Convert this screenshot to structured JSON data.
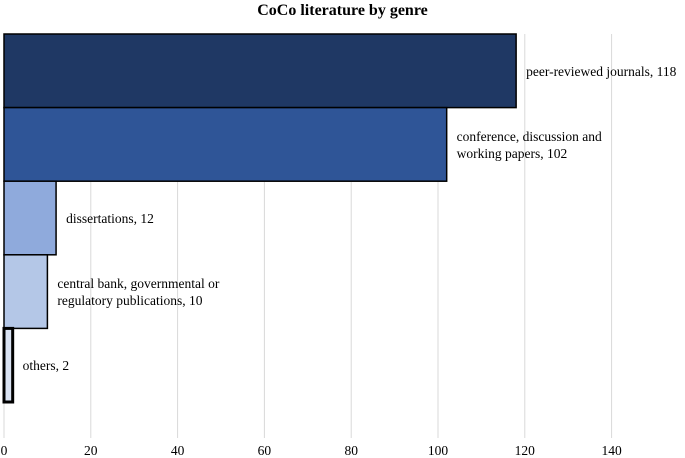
{
  "chart_data": {
    "type": "bar",
    "orientation": "horizontal",
    "title": "CoCo literature by genre",
    "xlabel": "",
    "ylabel": "",
    "xlim": [
      0,
      150
    ],
    "xticks": [
      0,
      20,
      40,
      60,
      80,
      100,
      120,
      140
    ],
    "grid": "vertical",
    "legend": "none",
    "categories": [
      "peer-reviewed journals",
      "conference, discussion and working papers",
      "dissertations",
      "central bank, governmental or regulatory publications",
      "others"
    ],
    "values": [
      118,
      102,
      12,
      10,
      2
    ],
    "data_labels": [
      [
        "peer-reviewed journals, 118"
      ],
      [
        "conference, discussion and",
        "working papers, 102"
      ],
      [
        "dissertations, 12"
      ],
      [
        "central bank, governmental or",
        "regulatory publications, 10"
      ],
      [
        "others, 2"
      ]
    ],
    "colors": [
      "#1f3864",
      "#2f5597",
      "#8faadc",
      "#b4c7e7",
      "#dae3f3"
    ],
    "grid_color": "#d9d9d9"
  }
}
